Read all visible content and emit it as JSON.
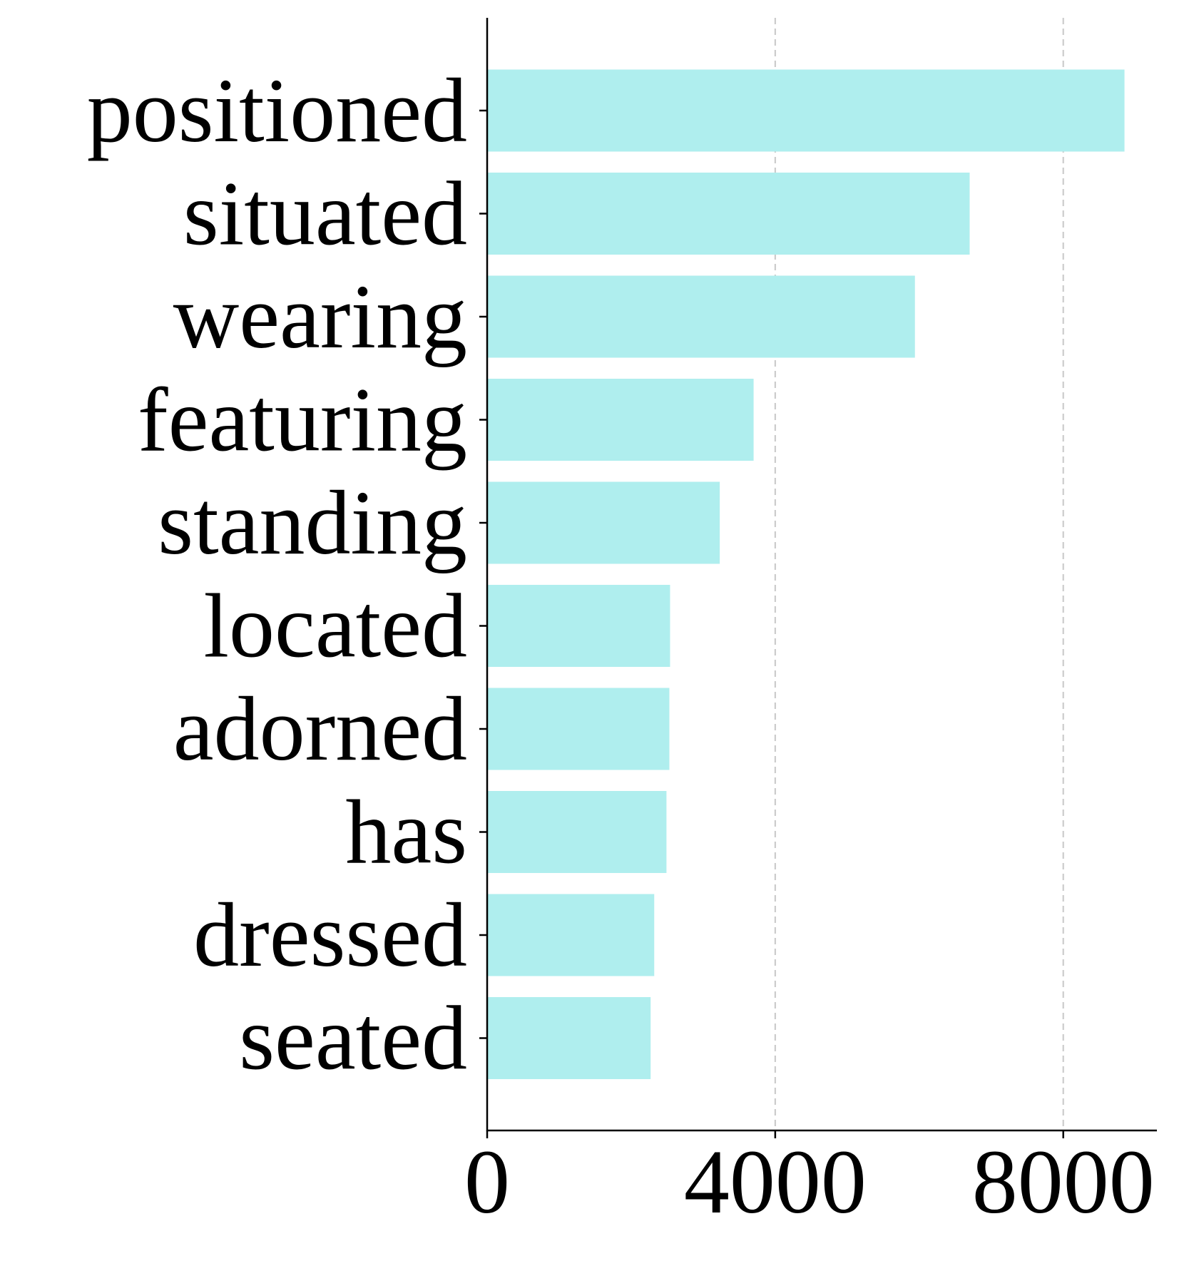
{
  "chart_data": {
    "type": "bar",
    "orientation": "horizontal",
    "title": "",
    "xlabel": "",
    "ylabel": "",
    "categories": [
      "positioned",
      "situated",
      "wearing",
      "featuring",
      "standing",
      "located",
      "adorned",
      "has",
      "dressed",
      "seated"
    ],
    "values": [
      8850,
      6700,
      5940,
      3700,
      3230,
      2540,
      2530,
      2490,
      2320,
      2270
    ],
    "xlim": [
      0,
      9300
    ],
    "xticks": [
      0,
      4000,
      8000
    ],
    "xtick_labels": [
      "0",
      "4000",
      "8000"
    ],
    "grid": "x-dashed",
    "legend": "none",
    "bar_color": "#afeeee",
    "grid_color": "#cccccc",
    "axis_color": "#000000"
  }
}
